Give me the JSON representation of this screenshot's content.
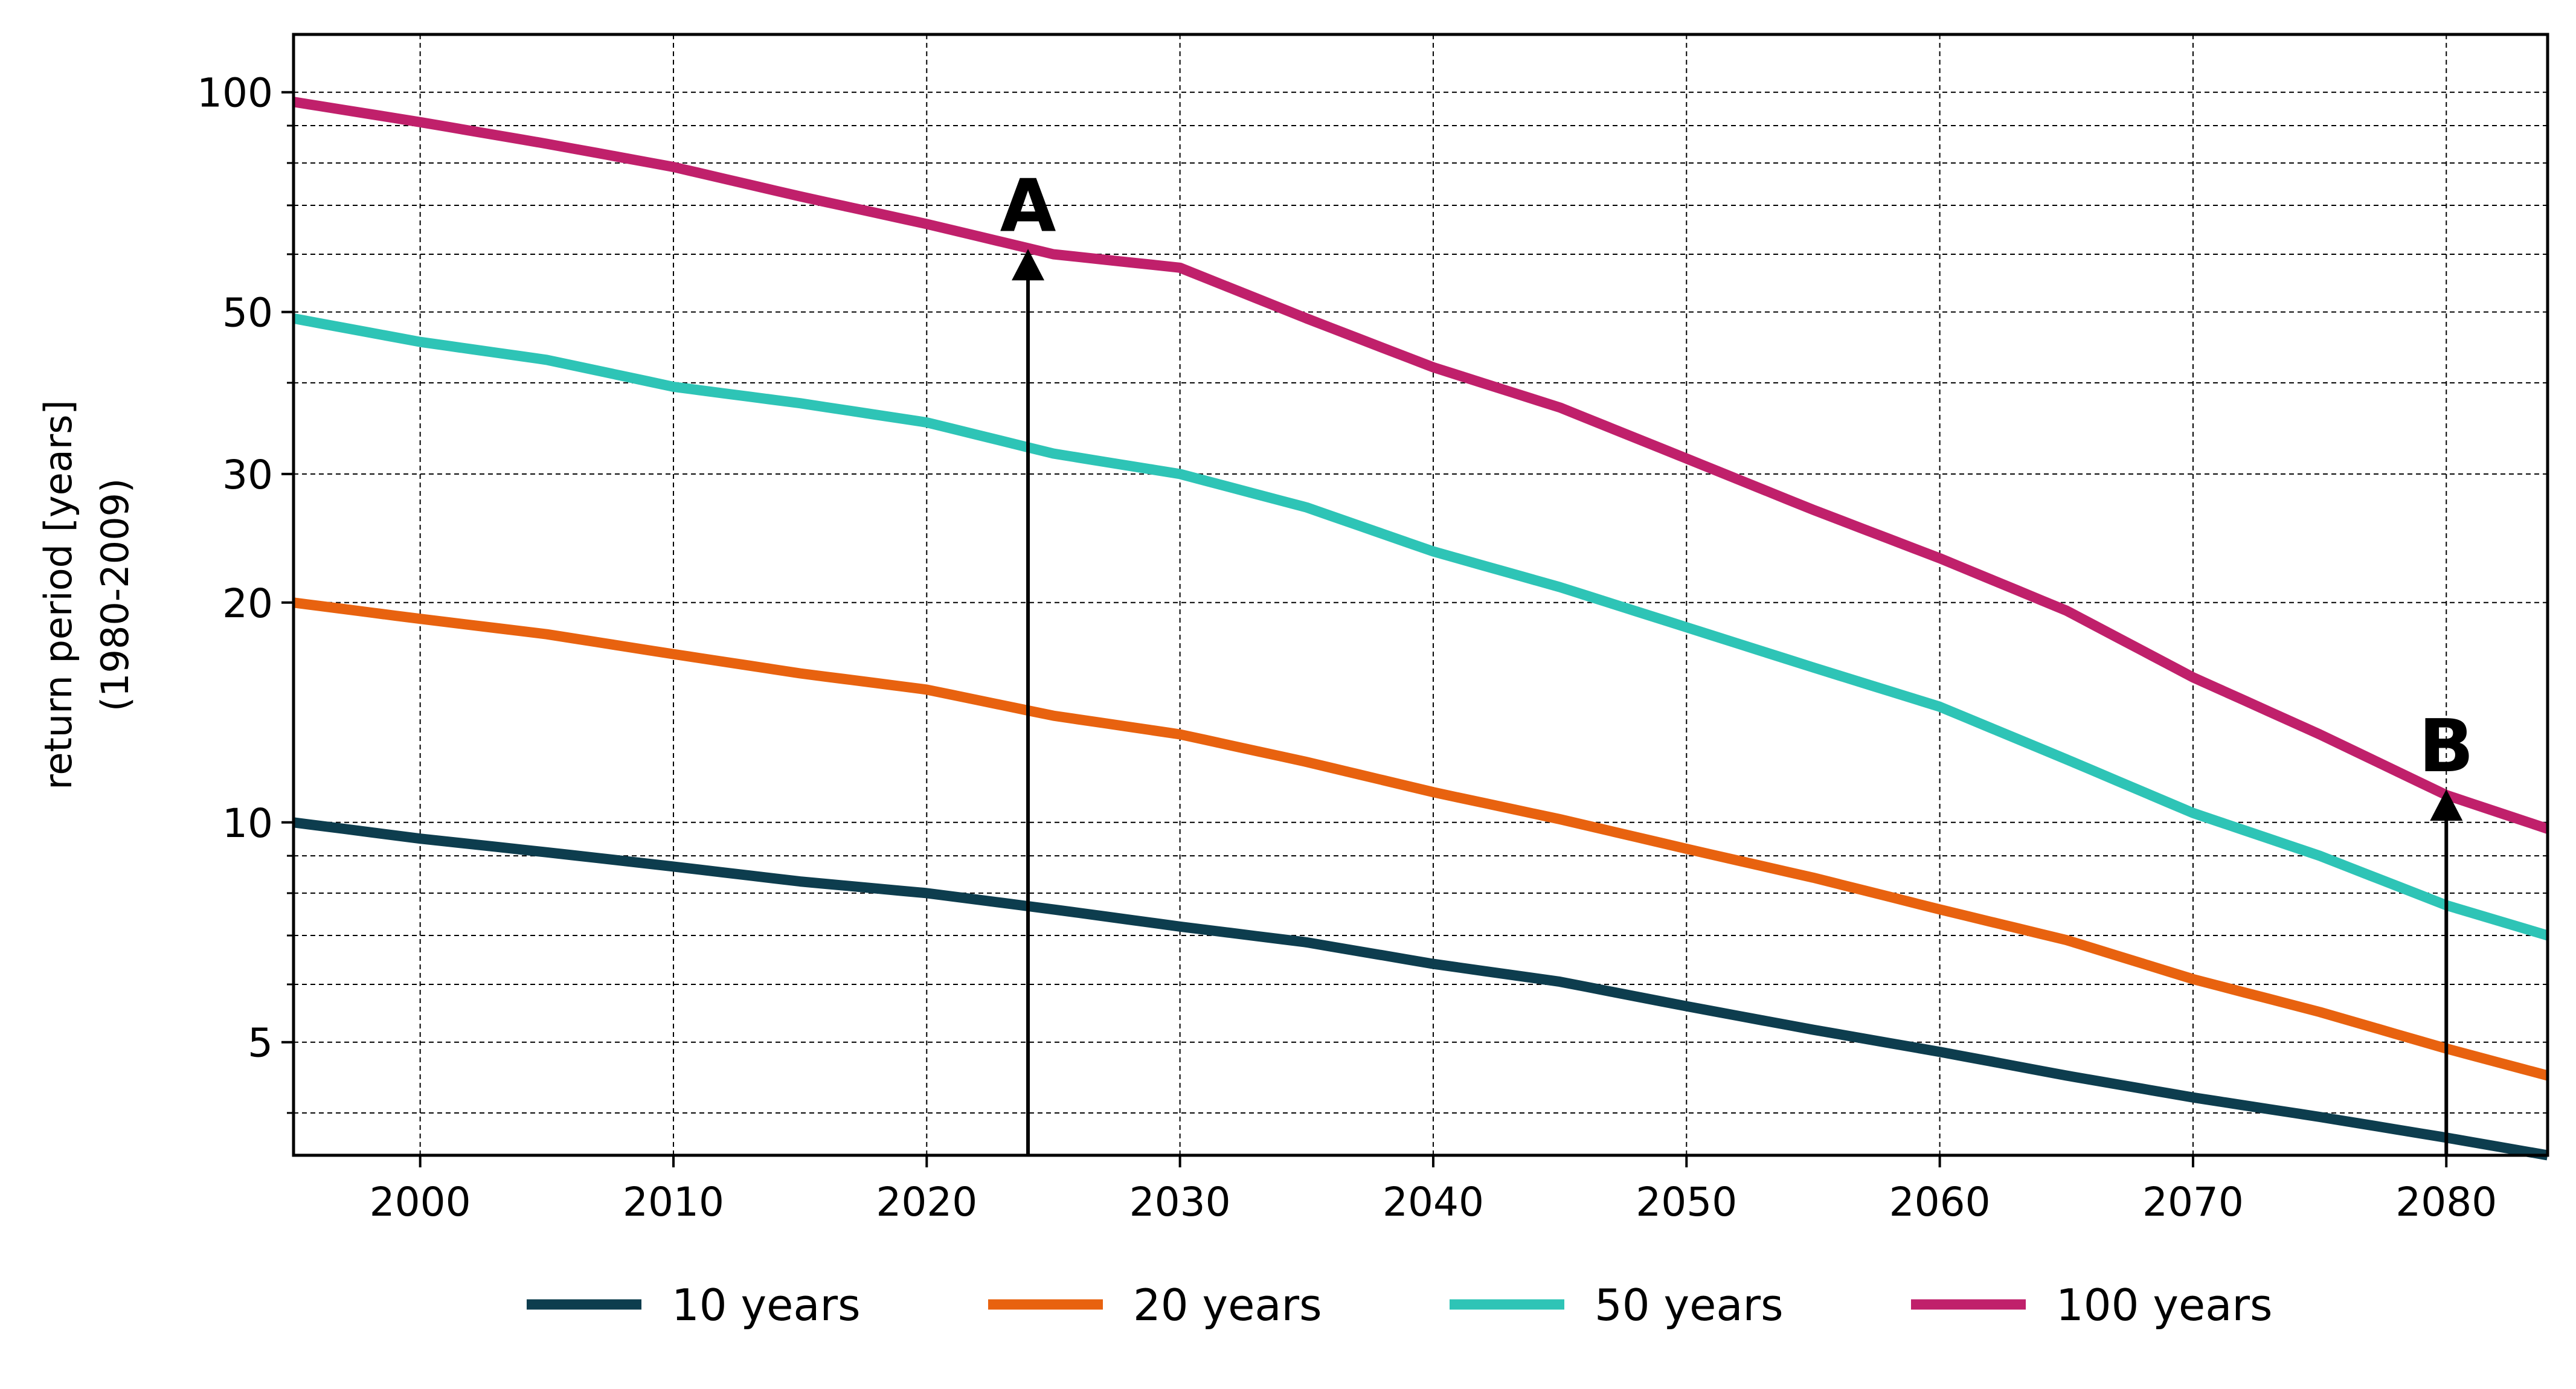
{
  "chart_data": {
    "type": "line",
    "title": "",
    "xlabel": "",
    "ylabel": "return period [years]",
    "ylabel_sub": "(1980-2009)",
    "xlim": [
      1995,
      2084
    ],
    "ylim": [
      3.5,
      120
    ],
    "yscale": "log",
    "grid": true,
    "legend_position": "bottom",
    "x_ticks": [
      2000,
      2010,
      2020,
      2030,
      2040,
      2050,
      2060,
      2070,
      2080
    ],
    "x_tick_labels": [
      "2000",
      "2010",
      "2020",
      "2030",
      "2040",
      "2050",
      "2060",
      "2070",
      "2080"
    ],
    "y_ticks": [
      5,
      10,
      20,
      30,
      50,
      100
    ],
    "y_tick_labels": [
      "5",
      "10",
      "20",
      "30",
      "50",
      "100"
    ],
    "y_minor_ticks": [
      4,
      6,
      7,
      8,
      9,
      40,
      60,
      70,
      80,
      90
    ],
    "series": [
      {
        "name": "10 years",
        "color": "#0d3d4e",
        "x": [
          1995,
          2000,
          2005,
          2010,
          2015,
          2020,
          2025,
          2030,
          2035,
          2040,
          2045,
          2050,
          2055,
          2060,
          2065,
          2070,
          2075,
          2080,
          2084
        ],
        "y": [
          10,
          9.5,
          9.1,
          8.7,
          8.3,
          8.0,
          7.6,
          7.2,
          6.85,
          6.4,
          6.05,
          5.6,
          5.2,
          4.85,
          4.5,
          4.2,
          3.95,
          3.7,
          3.5
        ]
      },
      {
        "name": "20 years",
        "color": "#e8620f",
        "x": [
          1995,
          2000,
          2005,
          2010,
          2015,
          2020,
          2025,
          2030,
          2035,
          2040,
          2045,
          2050,
          2055,
          2060,
          2065,
          2070,
          2075,
          2080,
          2084
        ],
        "y": [
          20,
          19.0,
          18.1,
          17.0,
          16.0,
          15.2,
          14.0,
          13.2,
          12.1,
          11.0,
          10.1,
          9.2,
          8.4,
          7.6,
          6.9,
          6.1,
          5.5,
          4.9,
          4.5
        ]
      },
      {
        "name": "50 years",
        "color": "#2ec4b6",
        "x": [
          1995,
          2000,
          2005,
          2010,
          2015,
          2020,
          2025,
          2030,
          2035,
          2040,
          2045,
          2050,
          2055,
          2060,
          2065,
          2070,
          2075,
          2080,
          2084
        ],
        "y": [
          49,
          45.5,
          43,
          39.5,
          37.5,
          35.3,
          32,
          30,
          27,
          23.5,
          21,
          18.5,
          16.3,
          14.4,
          12.2,
          10.3,
          9.0,
          7.7,
          7.0
        ]
      },
      {
        "name": "100 years",
        "color": "#c0206b",
        "x": [
          1995,
          2000,
          2005,
          2010,
          2015,
          2020,
          2025,
          2030,
          2035,
          2040,
          2045,
          2050,
          2055,
          2060,
          2065,
          2070,
          2075,
          2080,
          2084
        ],
        "y": [
          97,
          91,
          85,
          79,
          72,
          66,
          60,
          57.5,
          49,
          42,
          37,
          31.5,
          26.8,
          23,
          19.5,
          15.8,
          13.2,
          10.9,
          9.8
        ]
      }
    ],
    "annotations": [
      {
        "label": "A",
        "x": 2024,
        "y": 61
      },
      {
        "label": "B",
        "x": 2080,
        "y": 11.1
      }
    ]
  }
}
